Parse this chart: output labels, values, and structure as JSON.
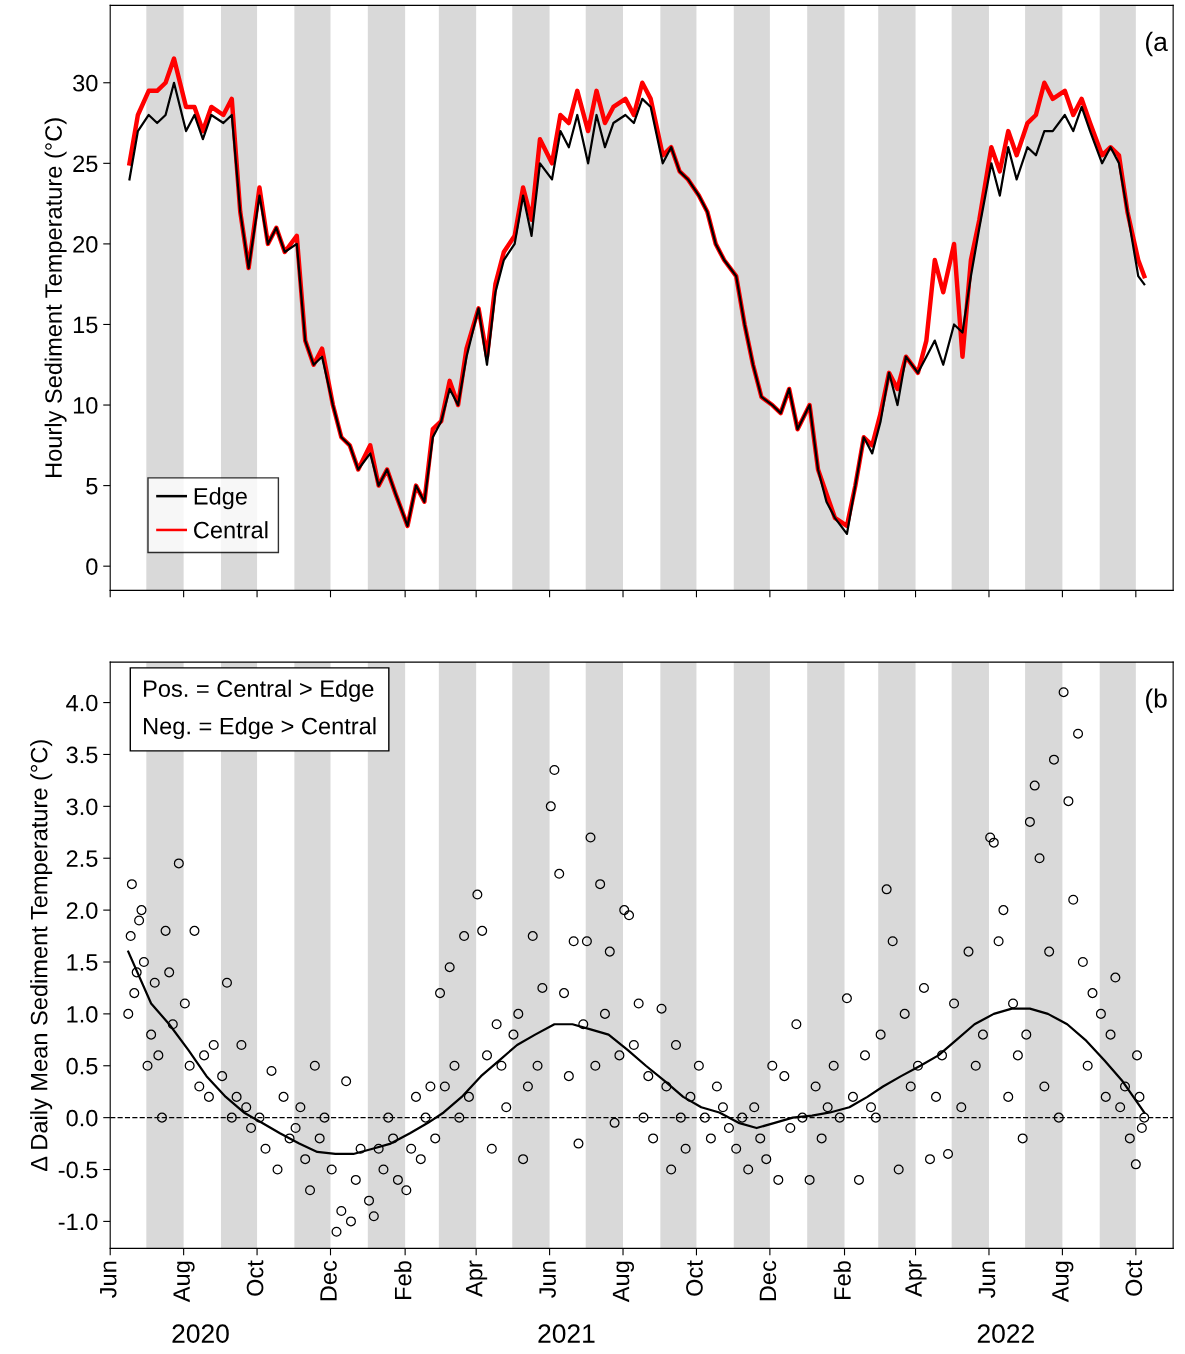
{
  "chart_data": [
    {
      "type": "line",
      "ylabel": "Hourly Sediment Temperature (°C)",
      "annotations": [
        "(a"
      ],
      "xlim": [
        "2020-06-01",
        "2022-11-01"
      ],
      "xticks": [
        {
          "value": "2020-06-01",
          "label": null
        },
        {
          "value": "2020-08-01",
          "label": null
        },
        {
          "value": "2020-10-01",
          "label": null
        },
        {
          "value": "2020-12-01",
          "label": null
        },
        {
          "value": "2021-02-01",
          "label": null
        },
        {
          "value": "2021-04-01",
          "label": null
        },
        {
          "value": "2021-06-01",
          "label": null
        },
        {
          "value": "2021-08-01",
          "label": null
        },
        {
          "value": "2021-10-01",
          "label": null
        },
        {
          "value": "2021-12-01",
          "label": null
        },
        {
          "value": "2022-02-01",
          "label": null
        },
        {
          "value": "2022-04-01",
          "label": null
        },
        {
          "value": "2022-06-01",
          "label": null
        },
        {
          "value": "2022-08-01",
          "label": null
        },
        {
          "value": "2022-10-01",
          "label": null
        }
      ],
      "ylim": [
        -1.5,
        34.8
      ],
      "yticks": [
        0,
        5,
        10,
        15,
        20,
        25,
        30
      ],
      "tick_labels": "y",
      "legend": "bottom left",
      "grid": false,
      "bands": [
        {
          "axis": "x",
          "from": "2020-07-01",
          "to": "2020-08-01",
          "color": "#d9d9d9"
        },
        {
          "axis": "x",
          "from": "2020-09-01",
          "to": "2020-10-01",
          "color": "#d9d9d9"
        },
        {
          "axis": "x",
          "from": "2020-11-01",
          "to": "2020-12-01",
          "color": "#d9d9d9"
        },
        {
          "axis": "x",
          "from": "2021-01-01",
          "to": "2021-02-01",
          "color": "#d9d9d9"
        },
        {
          "axis": "x",
          "from": "2021-03-01",
          "to": "2021-04-01",
          "color": "#d9d9d9"
        },
        {
          "axis": "x",
          "from": "2021-05-01",
          "to": "2021-06-01",
          "color": "#d9d9d9"
        },
        {
          "axis": "x",
          "from": "2021-07-01",
          "to": "2021-08-01",
          "color": "#d9d9d9"
        },
        {
          "axis": "x",
          "from": "2021-09-01",
          "to": "2021-10-01",
          "color": "#d9d9d9"
        },
        {
          "axis": "x",
          "from": "2021-11-01",
          "to": "2021-12-01",
          "color": "#d9d9d9"
        },
        {
          "axis": "x",
          "from": "2022-01-01",
          "to": "2022-02-01",
          "color": "#d9d9d9"
        },
        {
          "axis": "x",
          "from": "2022-03-01",
          "to": "2022-04-01",
          "color": "#d9d9d9"
        },
        {
          "axis": "x",
          "from": "2022-05-01",
          "to": "2022-06-01",
          "color": "#d9d9d9"
        },
        {
          "axis": "x",
          "from": "2022-07-01",
          "to": "2022-08-01",
          "color": "#d9d9d9"
        },
        {
          "axis": "x",
          "from": "2022-09-01",
          "to": "2022-10-01",
          "color": "#d9d9d9"
        }
      ],
      "x": [
        "2020-06-17",
        "2020-06-24",
        "2020-07-03",
        "2020-07-10",
        "2020-07-17",
        "2020-07-24",
        "2020-08-03",
        "2020-08-10",
        "2020-08-17",
        "2020-08-24",
        "2020-09-03",
        "2020-09-10",
        "2020-09-17",
        "2020-09-24",
        "2020-10-03",
        "2020-10-10",
        "2020-10-17",
        "2020-10-24",
        "2020-11-03",
        "2020-11-10",
        "2020-11-17",
        "2020-11-24",
        "2020-12-03",
        "2020-12-10",
        "2020-12-17",
        "2020-12-24",
        "2021-01-03",
        "2021-01-10",
        "2021-01-17",
        "2021-01-24",
        "2021-02-03",
        "2021-02-10",
        "2021-02-17",
        "2021-02-24",
        "2021-03-03",
        "2021-03-10",
        "2021-03-17",
        "2021-03-24",
        "2021-04-03",
        "2021-04-10",
        "2021-04-17",
        "2021-04-24",
        "2021-05-03",
        "2021-05-10",
        "2021-05-17",
        "2021-05-24",
        "2021-06-03",
        "2021-06-10",
        "2021-06-17",
        "2021-06-24",
        "2021-07-03",
        "2021-07-10",
        "2021-07-17",
        "2021-07-24",
        "2021-08-03",
        "2021-08-10",
        "2021-08-17",
        "2021-08-24",
        "2021-09-03",
        "2021-09-10",
        "2021-09-17",
        "2021-09-24",
        "2021-10-03",
        "2021-10-10",
        "2021-10-17",
        "2021-10-24",
        "2021-11-03",
        "2021-11-10",
        "2021-11-17",
        "2021-11-24",
        "2021-12-03",
        "2021-12-10",
        "2021-12-17",
        "2021-12-24",
        "2022-01-03",
        "2022-01-10",
        "2022-01-17",
        "2022-01-24",
        "2022-02-03",
        "2022-02-10",
        "2022-02-17",
        "2022-02-24",
        "2022-03-03",
        "2022-03-10",
        "2022-03-17",
        "2022-03-24",
        "2022-04-03",
        "2022-04-10",
        "2022-04-17",
        "2022-04-24",
        "2022-05-03",
        "2022-05-10",
        "2022-05-17",
        "2022-05-24",
        "2022-06-03",
        "2022-06-10",
        "2022-06-17",
        "2022-06-24",
        "2022-07-03",
        "2022-07-10",
        "2022-07-17",
        "2022-07-24",
        "2022-08-03",
        "2022-08-10",
        "2022-08-17",
        "2022-08-24",
        "2022-09-03",
        "2022-09-10",
        "2022-09-17",
        "2022-09-24",
        "2022-10-03",
        "2022-10-08"
      ],
      "series": [
        {
          "name": "Central",
          "color": "#ff0000",
          "values": [
            25,
            28,
            29.5,
            29.5,
            30,
            31.5,
            28.5,
            28.5,
            27,
            28.5,
            28,
            29,
            22,
            18.5,
            23.5,
            20,
            21,
            19.5,
            20.5,
            14,
            12.5,
            13.5,
            10,
            8,
            7.5,
            6,
            7.5,
            5,
            6,
            4.5,
            2.5,
            5,
            4,
            8.5,
            9,
            11.5,
            10,
            13.5,
            16,
            13,
            17.5,
            19.5,
            20.5,
            23.5,
            21.5,
            26.5,
            25,
            28,
            27.5,
            29.5,
            27,
            29.5,
            27.5,
            28.5,
            29,
            28,
            30,
            29,
            25.5,
            26,
            24.5,
            24,
            23,
            22,
            20,
            19,
            18,
            15,
            12.5,
            10.5,
            10,
            9.5,
            11,
            8.5,
            10,
            6,
            4.5,
            3,
            2.5,
            5,
            8,
            7.5,
            9.5,
            12,
            11,
            13,
            12,
            14,
            19,
            17,
            20,
            13,
            19,
            21.5,
            26,
            24.5,
            27,
            25.5,
            27.5,
            28,
            30,
            29,
            29.5,
            28,
            29,
            27.5,
            25.5,
            26,
            25.5,
            22,
            19,
            18
          ]
        },
        {
          "name": "Edge",
          "color": "#000000",
          "values": [
            24,
            27,
            28,
            27.5,
            28,
            30,
            27,
            28,
            26.5,
            28,
            27.5,
            28,
            22,
            18.5,
            23,
            20,
            21,
            19.5,
            20,
            14,
            12.5,
            13,
            10,
            8,
            7.5,
            6,
            7,
            5,
            6,
            4.5,
            2.5,
            5,
            4,
            8,
            9,
            11,
            10,
            13,
            16,
            12.5,
            17,
            19,
            20,
            23,
            20.5,
            25,
            24,
            27,
            26,
            28,
            25,
            28,
            26,
            27.5,
            28,
            27.5,
            29,
            28.5,
            25,
            26,
            24.5,
            24,
            23,
            22,
            20,
            19,
            18,
            15,
            12.5,
            10.5,
            10,
            9.5,
            11,
            8.5,
            10,
            6,
            4,
            3,
            2,
            5,
            8,
            7,
            9,
            12,
            10,
            13,
            12,
            13,
            14,
            12.5,
            15,
            14.5,
            18,
            21,
            25,
            23,
            26,
            24,
            26,
            25.5,
            27,
            27,
            28,
            27,
            28.5,
            27,
            25,
            26,
            25,
            22,
            18,
            17.5
          ]
        }
      ]
    },
    {
      "type": "scatter",
      "ylabel": "Δ Daily Mean Sediment Temperature (°C)",
      "annotations": [
        "(b",
        "Pos. = Central > Edge",
        "Neg. = Edge > Central"
      ],
      "xlim": [
        "2020-06-01",
        "2022-11-01"
      ],
      "xticks": [
        {
          "value": "2020-06-01",
          "label": "Jun"
        },
        {
          "value": "2020-08-01",
          "label": "Aug"
        },
        {
          "value": "2020-10-01",
          "label": "Oct"
        },
        {
          "value": "2020-12-01",
          "label": "Dec"
        },
        {
          "value": "2021-02-01",
          "label": "Feb"
        },
        {
          "value": "2021-04-01",
          "label": "Apr"
        },
        {
          "value": "2021-06-01",
          "label": "Jun"
        },
        {
          "value": "2021-08-01",
          "label": "Aug"
        },
        {
          "value": "2021-10-01",
          "label": "Oct"
        },
        {
          "value": "2021-12-01",
          "label": "Dec"
        },
        {
          "value": "2022-02-01",
          "label": "Feb"
        },
        {
          "value": "2022-04-01",
          "label": "Apr"
        },
        {
          "value": "2022-06-01",
          "label": "Jun"
        },
        {
          "value": "2022-08-01",
          "label": "Aug"
        },
        {
          "value": "2022-10-01",
          "label": "Oct"
        }
      ],
      "x2lim": [
        "2020-06-01",
        "2022-11-01"
      ],
      "x2ticks": [
        {
          "value": "2020-08-15",
          "label": "2020"
        },
        {
          "value": "2021-06-15",
          "label": "2021"
        },
        {
          "value": "2022-06-15",
          "label": "2022"
        }
      ],
      "ylim": [
        -1.26,
        4.39
      ],
      "yticks": [
        {
          "value": -1,
          "label": "-1.0"
        },
        -0.5,
        {
          "value": 0,
          "label": "0.0"
        },
        0.5,
        {
          "value": 1,
          "label": "1.0"
        },
        1.5,
        {
          "value": 2,
          "label": "2.0"
        },
        2.5,
        {
          "value": 3,
          "label": "3.0"
        },
        3.5,
        {
          "value": 4,
          "label": "4.0"
        }
      ],
      "grid": false,
      "legend": false,
      "ref_lines": [
        {
          "axis": "y",
          "value": 0,
          "color": "#000000",
          "line_style": "dashed"
        }
      ],
      "bands": [
        {
          "axis": "x",
          "from": "2020-07-01",
          "to": "2020-08-01",
          "color": "#d9d9d9"
        },
        {
          "axis": "x",
          "from": "2020-09-01",
          "to": "2020-10-01",
          "color": "#d9d9d9"
        },
        {
          "axis": "x",
          "from": "2020-11-01",
          "to": "2020-12-01",
          "color": "#d9d9d9"
        },
        {
          "axis": "x",
          "from": "2021-01-01",
          "to": "2021-02-01",
          "color": "#d9d9d9"
        },
        {
          "axis": "x",
          "from": "2021-03-01",
          "to": "2021-04-01",
          "color": "#d9d9d9"
        },
        {
          "axis": "x",
          "from": "2021-05-01",
          "to": "2021-06-01",
          "color": "#d9d9d9"
        },
        {
          "axis": "x",
          "from": "2021-07-01",
          "to": "2021-08-01",
          "color": "#d9d9d9"
        },
        {
          "axis": "x",
          "from": "2021-09-01",
          "to": "2021-10-01",
          "color": "#d9d9d9"
        },
        {
          "axis": "x",
          "from": "2021-11-01",
          "to": "2021-12-01",
          "color": "#d9d9d9"
        },
        {
          "axis": "x",
          "from": "2022-01-01",
          "to": "2022-02-01",
          "color": "#d9d9d9"
        },
        {
          "axis": "x",
          "from": "2022-03-01",
          "to": "2022-04-01",
          "color": "#d9d9d9"
        },
        {
          "axis": "x",
          "from": "2022-05-01",
          "to": "2022-06-01",
          "color": "#d9d9d9"
        },
        {
          "axis": "x",
          "from": "2022-07-01",
          "to": "2022-08-01",
          "color": "#d9d9d9"
        },
        {
          "axis": "x",
          "from": "2022-09-01",
          "to": "2022-10-01",
          "color": "#d9d9d9"
        }
      ],
      "series": [
        {
          "type": "scatter",
          "color": "#000000",
          "marker": "circle",
          "x": [
            "2020-06-16",
            "2020-06-18",
            "2020-06-19",
            "2020-06-21",
            "2020-06-23",
            "2020-06-25",
            "2020-06-27",
            "2020-06-29",
            "2020-07-02",
            "2020-07-05",
            "2020-07-08",
            "2020-07-11",
            "2020-07-14",
            "2020-07-17",
            "2020-07-20",
            "2020-07-23",
            "2020-07-28",
            "2020-08-02",
            "2020-08-06",
            "2020-08-10",
            "2020-08-14",
            "2020-08-18",
            "2020-08-22",
            "2020-08-26",
            "2020-09-02",
            "2020-09-06",
            "2020-09-10",
            "2020-09-14",
            "2020-09-18",
            "2020-09-22",
            "2020-09-26",
            "2020-10-03",
            "2020-10-08",
            "2020-10-13",
            "2020-10-18",
            "2020-10-23",
            "2020-10-28",
            "2020-11-02",
            "2020-11-06",
            "2020-11-10",
            "2020-11-14",
            "2020-11-18",
            "2020-11-22",
            "2020-11-26",
            "2020-12-02",
            "2020-12-06",
            "2020-12-10",
            "2020-12-14",
            "2020-12-18",
            "2020-12-22",
            "2020-12-26",
            "2021-01-02",
            "2021-01-06",
            "2021-01-10",
            "2021-01-14",
            "2021-01-18",
            "2021-01-22",
            "2021-01-26",
            "2021-02-02",
            "2021-02-06",
            "2021-02-10",
            "2021-02-14",
            "2021-02-18",
            "2021-02-22",
            "2021-02-26",
            "2021-03-02",
            "2021-03-06",
            "2021-03-10",
            "2021-03-14",
            "2021-03-18",
            "2021-03-22",
            "2021-03-26",
            "2021-04-02",
            "2021-04-06",
            "2021-04-10",
            "2021-04-14",
            "2021-04-18",
            "2021-04-22",
            "2021-04-26",
            "2021-05-02",
            "2021-05-06",
            "2021-05-10",
            "2021-05-14",
            "2021-05-18",
            "2021-05-22",
            "2021-05-26",
            "2021-06-02",
            "2021-06-05",
            "2021-06-09",
            "2021-06-13",
            "2021-06-17",
            "2021-06-21",
            "2021-06-25",
            "2021-06-29",
            "2021-07-02",
            "2021-07-05",
            "2021-07-09",
            "2021-07-13",
            "2021-07-17",
            "2021-07-21",
            "2021-07-25",
            "2021-07-29",
            "2021-08-02",
            "2021-08-06",
            "2021-08-10",
            "2021-08-14",
            "2021-08-18",
            "2021-08-22",
            "2021-08-26",
            "2021-09-02",
            "2021-09-06",
            "2021-09-10",
            "2021-09-14",
            "2021-09-18",
            "2021-09-22",
            "2021-09-26",
            "2021-10-03",
            "2021-10-08",
            "2021-10-13",
            "2021-10-18",
            "2021-10-23",
            "2021-10-28",
            "2021-11-03",
            "2021-11-08",
            "2021-11-13",
            "2021-11-18",
            "2021-11-23",
            "2021-11-28",
            "2021-12-03",
            "2021-12-08",
            "2021-12-13",
            "2021-12-18",
            "2021-12-23",
            "2021-12-28",
            "2022-01-03",
            "2022-01-08",
            "2022-01-13",
            "2022-01-18",
            "2022-01-23",
            "2022-01-28",
            "2022-02-03",
            "2022-02-08",
            "2022-02-13",
            "2022-02-18",
            "2022-02-23",
            "2022-02-27",
            "2022-03-03",
            "2022-03-08",
            "2022-03-13",
            "2022-03-18",
            "2022-03-23",
            "2022-03-28",
            "2022-04-03",
            "2022-04-08",
            "2022-04-13",
            "2022-04-18",
            "2022-04-23",
            "2022-04-28",
            "2022-05-03",
            "2022-05-09",
            "2022-05-15",
            "2022-05-21",
            "2022-05-27",
            "2022-06-02",
            "2022-06-05",
            "2022-06-09",
            "2022-06-13",
            "2022-06-17",
            "2022-06-21",
            "2022-06-25",
            "2022-06-29",
            "2022-07-02",
            "2022-07-05",
            "2022-07-09",
            "2022-07-13",
            "2022-07-17",
            "2022-07-21",
            "2022-07-25",
            "2022-07-29",
            "2022-08-02",
            "2022-08-06",
            "2022-08-10",
            "2022-08-14",
            "2022-08-18",
            "2022-08-22",
            "2022-08-26",
            "2022-09-02",
            "2022-09-06",
            "2022-09-10",
            "2022-09-14",
            "2022-09-18",
            "2022-09-22",
            "2022-09-26",
            "2022-10-01",
            "2022-10-02",
            "2022-10-04",
            "2022-10-06",
            "2022-10-08"
          ],
          "values": [
            1.0,
            1.75,
            2.25,
            1.2,
            1.4,
            1.9,
            2.0,
            1.5,
            0.5,
            0.8,
            1.3,
            0.6,
            0.0,
            1.8,
            1.4,
            0.9,
            2.45,
            1.1,
            0.5,
            1.8,
            0.3,
            0.6,
            0.2,
            0.7,
            0.4,
            1.3,
            0.0,
            0.2,
            0.7,
            0.1,
            -0.1,
            0.0,
            -0.3,
            0.45,
            -0.5,
            0.2,
            -0.2,
            -0.1,
            0.1,
            -0.4,
            -0.7,
            0.5,
            -0.2,
            0.0,
            -0.5,
            -1.1,
            -0.9,
            0.35,
            -1.0,
            -0.6,
            -0.3,
            -0.8,
            -0.95,
            -0.3,
            -0.5,
            0.0,
            -0.2,
            -0.6,
            -0.7,
            -0.3,
            0.2,
            -0.4,
            0.0,
            0.3,
            -0.2,
            1.2,
            0.3,
            1.45,
            0.5,
            0.0,
            1.75,
            0.2,
            2.15,
            1.8,
            0.6,
            -0.3,
            0.9,
            0.5,
            0.1,
            0.8,
            1.0,
            -0.4,
            0.3,
            1.75,
            0.5,
            1.25,
            3.0,
            3.35,
            2.35,
            1.2,
            0.4,
            1.7,
            -0.25,
            0.9,
            1.7,
            2.7,
            0.5,
            2.25,
            1.0,
            1.6,
            -0.05,
            0.6,
            2.0,
            1.95,
            0.7,
            1.1,
            0.0,
            0.4,
            -0.2,
            1.05,
            0.3,
            -0.5,
            0.7,
            0.0,
            -0.3,
            0.2,
            0.5,
            0.0,
            -0.2,
            0.3,
            0.1,
            -0.1,
            -0.3,
            0.0,
            -0.5,
            0.1,
            -0.2,
            -0.4,
            0.5,
            -0.6,
            0.4,
            -0.1,
            0.9,
            0.0,
            -0.6,
            0.3,
            -0.2,
            0.1,
            0.5,
            0.0,
            1.15,
            0.2,
            -0.6,
            0.6,
            0.1,
            0.0,
            0.8,
            2.2,
            1.7,
            -0.5,
            1.0,
            0.3,
            0.5,
            1.25,
            -0.4,
            0.2,
            0.6,
            -0.35,
            1.1,
            0.1,
            1.6,
            0.5,
            0.8,
            2.7,
            2.65,
            1.7,
            2.0,
            0.2,
            1.1,
            0.6,
            -0.2,
            0.8,
            2.85,
            3.2,
            2.5,
            0.3,
            1.6,
            3.45,
            0.0,
            4.1,
            3.05,
            2.1,
            3.7,
            1.5,
            0.5,
            1.2,
            1.0,
            0.2,
            0.8,
            1.35,
            0.1,
            0.3,
            -0.2,
            -0.45,
            0.6,
            0.2,
            -0.1,
            0.0
          ]
        },
        {
          "type": "line",
          "color": "#000000",
          "x": [
            "2020-06-16",
            "2020-07-05",
            "2020-07-20",
            "2020-08-05",
            "2020-08-20",
            "2020-09-05",
            "2020-09-20",
            "2020-10-05",
            "2020-10-20",
            "2020-11-05",
            "2020-11-20",
            "2020-12-05",
            "2020-12-20",
            "2021-01-05",
            "2021-01-20",
            "2021-02-05",
            "2021-02-20",
            "2021-03-05",
            "2021-03-20",
            "2021-04-05",
            "2021-04-20",
            "2021-05-05",
            "2021-05-20",
            "2021-06-05",
            "2021-06-20",
            "2021-07-05",
            "2021-07-20",
            "2021-08-05",
            "2021-08-20",
            "2021-09-05",
            "2021-09-20",
            "2021-10-05",
            "2021-10-20",
            "2021-11-05",
            "2021-11-20",
            "2021-12-05",
            "2021-12-20",
            "2022-01-05",
            "2022-01-20",
            "2022-02-05",
            "2022-02-20",
            "2022-03-05",
            "2022-03-20",
            "2022-04-05",
            "2022-04-20",
            "2022-05-05",
            "2022-05-20",
            "2022-06-05",
            "2022-06-20",
            "2022-07-05",
            "2022-07-20",
            "2022-08-05",
            "2022-08-20",
            "2022-09-05",
            "2022-09-20",
            "2022-10-08"
          ],
          "values": [
            1.6,
            1.1,
            0.9,
            0.65,
            0.4,
            0.2,
            0.05,
            -0.05,
            -0.15,
            -0.25,
            -0.33,
            -0.35,
            -0.35,
            -0.3,
            -0.25,
            -0.15,
            -0.05,
            0.05,
            0.2,
            0.4,
            0.55,
            0.7,
            0.8,
            0.9,
            0.9,
            0.85,
            0.8,
            0.65,
            0.5,
            0.35,
            0.2,
            0.1,
            0.05,
            -0.05,
            -0.1,
            -0.05,
            0.0,
            0.02,
            0.05,
            0.1,
            0.2,
            0.3,
            0.4,
            0.5,
            0.6,
            0.75,
            0.9,
            1.0,
            1.05,
            1.05,
            1.0,
            0.9,
            0.75,
            0.55,
            0.35,
            0.05
          ]
        }
      ]
    }
  ]
}
